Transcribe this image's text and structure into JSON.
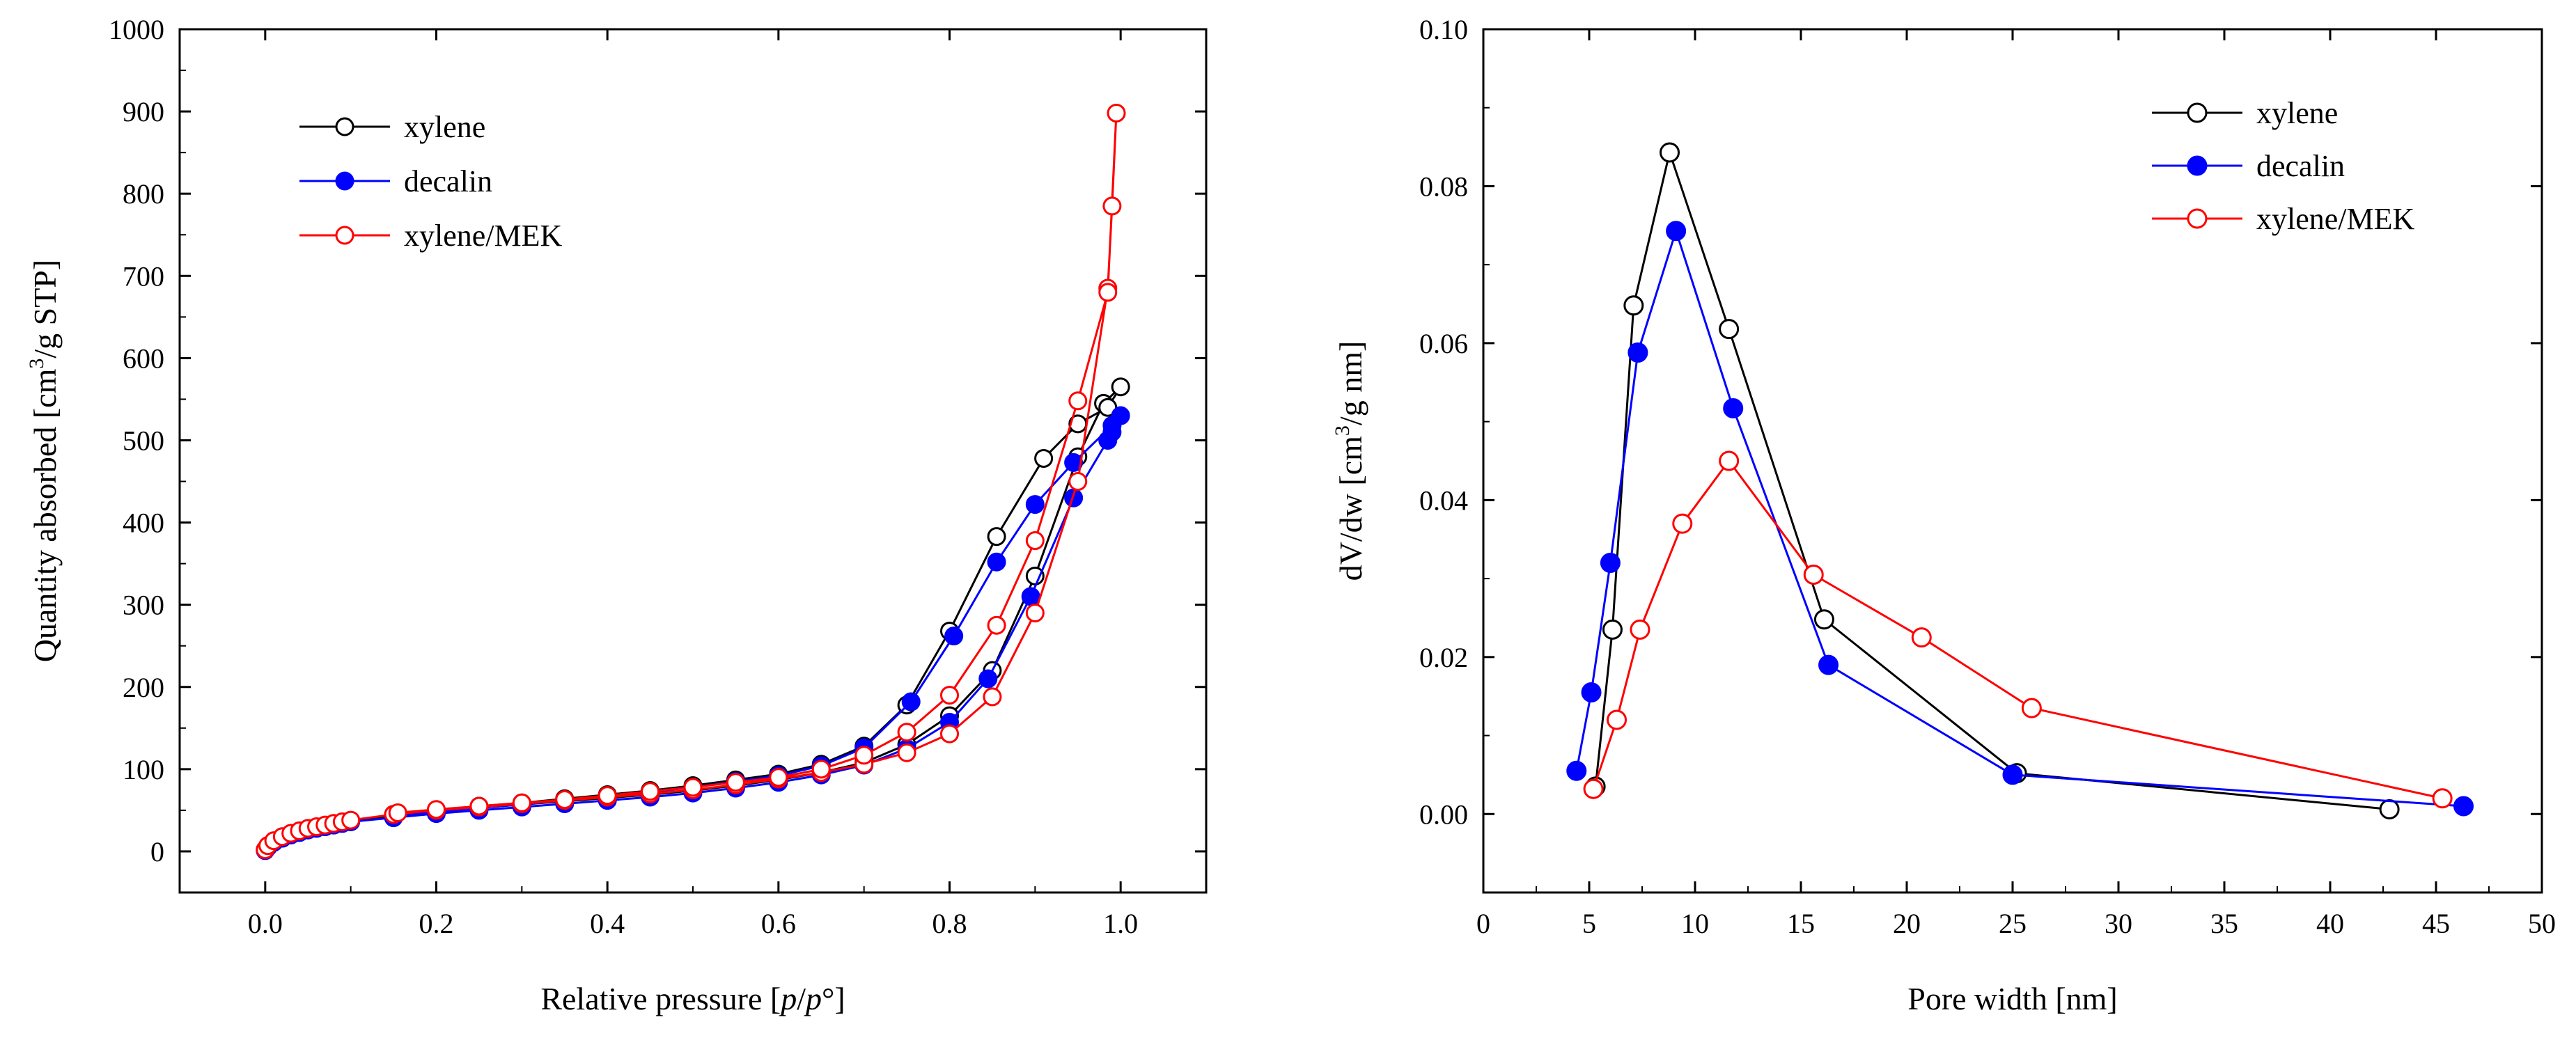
{
  "chart_data": [
    {
      "type": "line",
      "panel": "left",
      "title": "",
      "xlabel": "Relative pressure [p/p°]",
      "ylabel": "Quantity absorbed [cm³/g STP]",
      "xlim": [
        -0.1,
        1.1
      ],
      "ylim": [
        -50,
        1000
      ],
      "x_ticks": [
        0.0,
        0.2,
        0.4,
        0.6,
        0.8,
        1.0
      ],
      "x_tick_labels": [
        "0.0",
        "0.2",
        "0.4",
        "0.6",
        "0.8",
        "1.0"
      ],
      "y_ticks": [
        0,
        100,
        200,
        300,
        400,
        500,
        600,
        700,
        800,
        900,
        1000
      ],
      "y_tick_labels": [
        "0",
        "100",
        "200",
        "300",
        "400",
        "500",
        "600",
        "700",
        "800",
        "900",
        "1000"
      ],
      "legend_position": "top-left",
      "series": [
        {
          "name": "xylene",
          "color": "#000000",
          "marker": "open-circle",
          "x": [
            0.0,
            0.003,
            0.01,
            0.02,
            0.03,
            0.04,
            0.05,
            0.06,
            0.07,
            0.08,
            0.09,
            0.1,
            0.15,
            0.2,
            0.25,
            0.3,
            0.35,
            0.4,
            0.45,
            0.5,
            0.55,
            0.6,
            0.65,
            0.7,
            0.75,
            0.8,
            0.85,
            0.9,
            0.95,
            0.98,
            1.0,
            0.985,
            0.95,
            0.91,
            0.855,
            0.8,
            0.75,
            0.7,
            0.65,
            0.6,
            0.55,
            0.5,
            0.45,
            0.4,
            0.35,
            0.3,
            0.25,
            0.2,
            0.15
          ],
          "y": [
            2,
            6,
            12,
            17,
            21,
            24,
            27,
            29,
            31,
            33,
            35,
            37,
            44,
            49,
            53,
            57,
            61,
            65,
            69,
            74,
            80,
            87,
            96,
            108,
            130,
            165,
            220,
            335,
            480,
            545,
            565,
            540,
            520,
            478,
            383,
            268,
            178,
            128,
            106,
            94,
            87,
            80,
            74,
            69,
            64,
            59,
            55,
            50,
            45
          ]
        },
        {
          "name": "decalin",
          "color": "#0000ff",
          "marker": "filled-circle",
          "x": [
            0.0,
            0.003,
            0.01,
            0.02,
            0.03,
            0.04,
            0.05,
            0.06,
            0.07,
            0.08,
            0.09,
            0.1,
            0.15,
            0.2,
            0.25,
            0.3,
            0.35,
            0.4,
            0.45,
            0.5,
            0.55,
            0.6,
            0.65,
            0.7,
            0.75,
            0.8,
            0.845,
            0.895,
            0.945,
            0.985,
            0.99,
            1.0,
            0.99,
            0.945,
            0.9,
            0.855,
            0.805,
            0.755,
            0.7,
            0.65,
            0.6,
            0.55,
            0.5,
            0.45,
            0.4,
            0.35,
            0.3,
            0.25,
            0.2,
            0.15
          ],
          "y": [
            1,
            5,
            11,
            16,
            20,
            23,
            26,
            28,
            30,
            32,
            34,
            36,
            41,
            46,
            50,
            54,
            58,
            62,
            66,
            71,
            77,
            84,
            93,
            105,
            125,
            157,
            210,
            310,
            430,
            500,
            510,
            530,
            518,
            473,
            422,
            352,
            262,
            182,
            126,
            104,
            92,
            85,
            78,
            72,
            67,
            62,
            57,
            53,
            48,
            43
          ]
        },
        {
          "name": "xylene/MEK",
          "color": "#ff0000",
          "marker": "open-circle",
          "x": [
            0.0,
            0.003,
            0.01,
            0.02,
            0.03,
            0.04,
            0.05,
            0.06,
            0.07,
            0.08,
            0.09,
            0.1,
            0.15,
            0.2,
            0.25,
            0.3,
            0.35,
            0.4,
            0.45,
            0.5,
            0.55,
            0.6,
            0.65,
            0.7,
            0.75,
            0.8,
            0.85,
            0.9,
            0.95,
            0.985,
            0.99,
            0.995,
            0.985,
            0.95,
            0.9,
            0.855,
            0.8,
            0.75,
            0.7,
            0.65,
            0.6,
            0.55,
            0.5,
            0.45,
            0.4,
            0.35,
            0.3,
            0.25,
            0.2,
            0.155
          ],
          "y": [
            2,
            7,
            13,
            18,
            22,
            25,
            28,
            30,
            32,
            34,
            36,
            38,
            45,
            50,
            54,
            58,
            62,
            66,
            70,
            75,
            81,
            88,
            96,
            106,
            120,
            143,
            188,
            290,
            450,
            685,
            785,
            898,
            680,
            548,
            378,
            275,
            190,
            145,
            117,
            100,
            90,
            84,
            78,
            73,
            68,
            63,
            59,
            55,
            51,
            47
          ]
        }
      ]
    },
    {
      "type": "line",
      "panel": "right",
      "title": "",
      "xlabel": "Pore width [nm]",
      "ylabel": "dV/dw [cm³/g nm]",
      "xlim": [
        0,
        50
      ],
      "ylim": [
        -0.01,
        0.1
      ],
      "x_ticks": [
        0,
        5,
        10,
        15,
        20,
        25,
        30,
        35,
        40,
        45,
        50
      ],
      "x_tick_labels": [
        "0",
        "5",
        "10",
        "15",
        "20",
        "25",
        "30",
        "35",
        "40",
        "45",
        "50"
      ],
      "y_ticks": [
        0.0,
        0.02,
        0.04,
        0.06,
        0.08,
        0.1
      ],
      "y_tick_labels": [
        "0.00",
        "0.02",
        "0.04",
        "0.06",
        "0.08",
        "0.10"
      ],
      "legend_position": "top-right",
      "series": [
        {
          "name": "xylene",
          "color": "#000000",
          "marker": "open-circle",
          "x": [
            5.3,
            6.1,
            7.1,
            8.8,
            11.6,
            16.1,
            25.2,
            42.8
          ],
          "y": [
            0.0035,
            0.0235,
            0.0648,
            0.0843,
            0.0618,
            0.0248,
            0.0052,
            0.0006
          ]
        },
        {
          "name": "decalin",
          "color": "#0000ff",
          "marker": "filled-circle",
          "x": [
            4.4,
            5.1,
            6.0,
            7.3,
            9.1,
            11.8,
            16.3,
            25.0,
            46.3
          ],
          "y": [
            0.0055,
            0.0155,
            0.032,
            0.0588,
            0.0743,
            0.0517,
            0.019,
            0.005,
            0.001
          ]
        },
        {
          "name": "xylene/MEK",
          "color": "#ff0000",
          "marker": "open-circle",
          "x": [
            5.2,
            6.3,
            7.4,
            9.4,
            11.6,
            15.6,
            20.7,
            25.9,
            45.3
          ],
          "y": [
            0.0032,
            0.012,
            0.0235,
            0.037,
            0.045,
            0.0305,
            0.0225,
            0.0135,
            0.002
          ]
        }
      ]
    }
  ]
}
